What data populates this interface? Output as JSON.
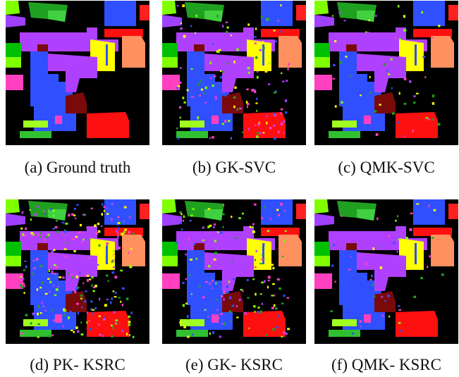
{
  "captions": [
    "(a) Ground truth",
    "(b) GK-SVC",
    "(c) QMK-SVC",
    "(d) PK- KSRC",
    "(e) GK- KSRC",
    "(f) QMK- KSRC"
  ]
}
